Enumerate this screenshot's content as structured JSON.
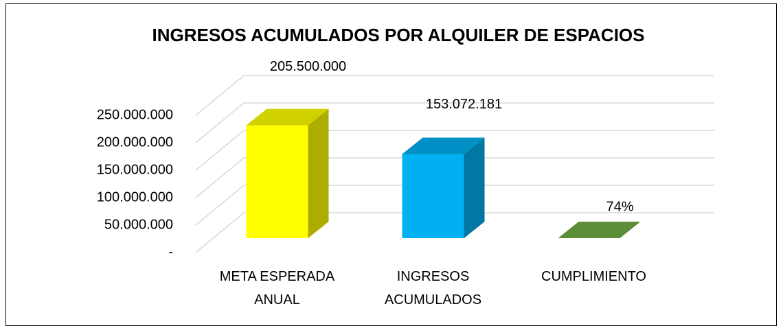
{
  "chart_data": {
    "type": "bar3d",
    "title": "INGRESOS ACUMULADOS POR ALQUILER DE ESPACIOS",
    "categories": [
      "META ESPERADA ANUAL",
      "INGRESOS ACUMULADOS",
      "CUMPLIMIENTO"
    ],
    "values": [
      205500000,
      153072181,
      0.74
    ],
    "value_labels": [
      "205.500.000",
      "153.072.181",
      "74%"
    ],
    "colors": [
      "#ffff00",
      "#00b0f0",
      "#70ad47"
    ],
    "ylim": [
      0,
      250000000
    ],
    "yticks": [
      {
        "value": 0,
        "label": "-"
      },
      {
        "value": 50000000,
        "label": "50.000.000"
      },
      {
        "value": 100000000,
        "label": "100.000.000"
      },
      {
        "value": 150000000,
        "label": "150.000.000"
      },
      {
        "value": 200000000,
        "label": "200.000.000"
      },
      {
        "value": 250000000,
        "label": "250.000.000"
      }
    ],
    "grid": true
  }
}
